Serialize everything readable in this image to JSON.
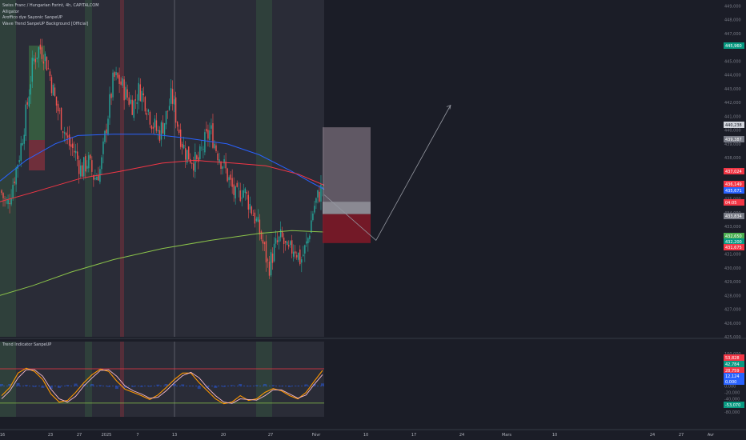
{
  "legend": {
    "line1": "Swiss Franc / Hungarian Forint, 4h, CAPITALCOM",
    "line2": "Alligator",
    "line3": "Aroffico dye Sayonic SanpeUP",
    "line4": "Wave Trend SanpeUP Background [Official]"
  },
  "oscillator_label": "Trend Indicator SanpeUP",
  "colors": {
    "background": "#1b1d27",
    "history_shade": "#2a2c37",
    "up_candle": "#26a69a",
    "down_candle": "#ef5350",
    "blue_line": "#2962ff",
    "red_line": "#f23645",
    "green_line": "#8bc34a",
    "orange_wave": "#ff9800",
    "pink_wave": "#f8bbd0"
  },
  "chart_data": [
    {
      "type": "candlestick",
      "title": "Swiss Franc / Hungarian Forint, 4h, CAPITALCOM",
      "x_ticks": [
        "16",
        "23",
        "27",
        "2025",
        "7",
        "13",
        "20",
        "27",
        "Févr",
        "10",
        "17",
        "24",
        "Mars",
        "10",
        "24",
        "27",
        "Avr"
      ],
      "y_ticks": [
        449.0,
        448.0,
        447.0,
        446.0,
        445.0,
        444.0,
        443.0,
        442.0,
        441.0,
        440.0,
        439.0,
        438.0,
        437.0,
        436.0,
        435.0,
        434.0,
        433.0,
        432.0,
        431.0,
        430.0,
        429.0,
        428.0,
        427.0,
        426.0,
        425.0
      ],
      "ylim": [
        425.0,
        449.2
      ],
      "grid": false,
      "close_path": [
        {
          "t": 0,
          "v": 435.6
        },
        {
          "t": 0.02,
          "v": 434.4
        },
        {
          "t": 0.04,
          "v": 436.4
        },
        {
          "t": 0.06,
          "v": 438.5
        },
        {
          "t": 0.08,
          "v": 441.5
        },
        {
          "t": 0.1,
          "v": 445.0
        },
        {
          "t": 0.12,
          "v": 446.0
        },
        {
          "t": 0.135,
          "v": 445.5
        },
        {
          "t": 0.15,
          "v": 444.2
        },
        {
          "t": 0.17,
          "v": 442.0
        },
        {
          "t": 0.19,
          "v": 440.5
        },
        {
          "t": 0.21,
          "v": 439.0
        },
        {
          "t": 0.23,
          "v": 438.4
        },
        {
          "t": 0.25,
          "v": 437.0
        },
        {
          "t": 0.27,
          "v": 437.8
        },
        {
          "t": 0.29,
          "v": 436.5
        },
        {
          "t": 0.31,
          "v": 437.2
        },
        {
          "t": 0.33,
          "v": 440.8
        },
        {
          "t": 0.35,
          "v": 443.8
        },
        {
          "t": 0.37,
          "v": 443.5
        },
        {
          "t": 0.39,
          "v": 442.5
        },
        {
          "t": 0.41,
          "v": 441.8
        },
        {
          "t": 0.43,
          "v": 443.0
        },
        {
          "t": 0.45,
          "v": 442.0
        },
        {
          "t": 0.47,
          "v": 440.5
        },
        {
          "t": 0.49,
          "v": 439.7
        },
        {
          "t": 0.51,
          "v": 440.8
        },
        {
          "t": 0.53,
          "v": 442.5
        },
        {
          "t": 0.55,
          "v": 440.2
        },
        {
          "t": 0.57,
          "v": 438.5
        },
        {
          "t": 0.59,
          "v": 438.0
        },
        {
          "t": 0.61,
          "v": 437.5
        },
        {
          "t": 0.63,
          "v": 439.0
        },
        {
          "t": 0.65,
          "v": 440.0
        },
        {
          "t": 0.67,
          "v": 438.5
        },
        {
          "t": 0.69,
          "v": 437.5
        },
        {
          "t": 0.71,
          "v": 436.2
        },
        {
          "t": 0.73,
          "v": 435.0
        },
        {
          "t": 0.75,
          "v": 435.8
        },
        {
          "t": 0.77,
          "v": 434.7
        },
        {
          "t": 0.79,
          "v": 433.5
        },
        {
          "t": 0.81,
          "v": 432.0
        },
        {
          "t": 0.83,
          "v": 430.0
        },
        {
          "t": 0.85,
          "v": 431.5
        },
        {
          "t": 0.87,
          "v": 432.2
        },
        {
          "t": 0.89,
          "v": 431.0
        },
        {
          "t": 0.91,
          "v": 431.6
        },
        {
          "t": 0.93,
          "v": 430.5
        },
        {
          "t": 0.95,
          "v": 431.8
        },
        {
          "t": 0.97,
          "v": 434.4
        },
        {
          "t": 1,
          "v": 436.1
        }
      ],
      "lines": [
        {
          "color": "#2962ff",
          "points": [
            {
              "t": 0,
              "v": 436.3
            },
            {
              "t": 0.08,
              "v": 437.8
            },
            {
              "t": 0.17,
              "v": 439.0
            },
            {
              "t": 0.24,
              "v": 439.6
            },
            {
              "t": 0.35,
              "v": 439.7
            },
            {
              "t": 0.47,
              "v": 439.7
            },
            {
              "t": 0.58,
              "v": 439.4
            },
            {
              "t": 0.7,
              "v": 439.0
            },
            {
              "t": 0.8,
              "v": 438.2
            },
            {
              "t": 0.9,
              "v": 437.0
            },
            {
              "t": 0.96,
              "v": 436.2
            },
            {
              "t": 1,
              "v": 435.7
            }
          ]
        },
        {
          "color": "#f23645",
          "points": [
            {
              "t": 0,
              "v": 434.8
            },
            {
              "t": 0.12,
              "v": 435.6
            },
            {
              "t": 0.25,
              "v": 436.5
            },
            {
              "t": 0.37,
              "v": 437.0
            },
            {
              "t": 0.5,
              "v": 437.6
            },
            {
              "t": 0.6,
              "v": 437.8
            },
            {
              "t": 0.72,
              "v": 437.6
            },
            {
              "t": 0.82,
              "v": 437.4
            },
            {
              "t": 0.92,
              "v": 436.8
            },
            {
              "t": 1,
              "v": 436.0
            }
          ]
        },
        {
          "color": "#8bc34a",
          "points": [
            {
              "t": 0,
              "v": 428.0
            },
            {
              "t": 0.1,
              "v": 428.7
            },
            {
              "t": 0.22,
              "v": 429.7
            },
            {
              "t": 0.35,
              "v": 430.6
            },
            {
              "t": 0.5,
              "v": 431.4
            },
            {
              "t": 0.65,
              "v": 432.0
            },
            {
              "t": 0.8,
              "v": 432.5
            },
            {
              "t": 0.9,
              "v": 432.7
            },
            {
              "t": 1,
              "v": 432.6
            }
          ]
        }
      ],
      "price_labels": [
        {
          "value": "448,000",
          "kind": "axis"
        },
        {
          "value": "445,960",
          "color": "#089981"
        },
        {
          "value": "440,238",
          "color": "#d1d4dc"
        },
        {
          "value": "439,387",
          "color": "#787b86"
        },
        {
          "value": "437,024",
          "color": "#f23645"
        },
        {
          "value": "436,149",
          "color": "#f23645"
        },
        {
          "value": "435,671",
          "color": "#2962ff"
        },
        {
          "value": "04:05",
          "color": "#f23645"
        },
        {
          "value": "433,834",
          "color": "#787b86"
        },
        {
          "value": "432,650",
          "color": "#4caf50"
        },
        {
          "value": "432,200",
          "color": "#089981"
        },
        {
          "value": "431,675",
          "color": "#f23645"
        }
      ],
      "trade_box": {
        "entry": 433.9,
        "target": 440.2,
        "stop": 431.8,
        "entry_zone_top": 434.8
      },
      "projection": [
        {
          "t": 1.0,
          "v": 435.3
        },
        {
          "t": 1.16,
          "v": 432.0
        },
        {
          "t": 1.39,
          "v": 441.8
        }
      ]
    },
    {
      "type": "line",
      "title": "Trend Indicator SanpeUP",
      "y_ticks": [
        100,
        80,
        60,
        40,
        20,
        0,
        -20,
        -40,
        -60,
        -80
      ],
      "ylim": [
        -88,
        100
      ],
      "levels": [
        53,
        -53
      ],
      "series": [
        {
          "name": "",
          "color": "#ff9800",
          "values": [
            -30,
            -5,
            40,
            55,
            45,
            20,
            -25,
            -50,
            -45,
            -20,
            10,
            35,
            52,
            45,
            15,
            -10,
            -20,
            -30,
            -42,
            -28,
            -5,
            20,
            40,
            40,
            10,
            -15,
            -40,
            -55,
            -50,
            -30,
            -45,
            -40,
            -20,
            -8,
            -15,
            -30,
            -40,
            -20,
            15,
            48
          ]
        },
        {
          "name": "",
          "color": "#f8bbd0",
          "values": [
            -40,
            -15,
            25,
            50,
            50,
            30,
            -10,
            -40,
            -50,
            -32,
            0,
            25,
            48,
            50,
            30,
            0,
            -15,
            -25,
            -38,
            -35,
            -15,
            10,
            32,
            42,
            25,
            -5,
            -30,
            -50,
            -54,
            -40,
            -42,
            -44,
            -30,
            -12,
            -12,
            -25,
            -38,
            -28,
            5,
            35
          ]
        }
      ],
      "price_labels": [
        {
          "value": "53,828",
          "color": "#f23645"
        },
        {
          "value": "42,784",
          "color": "#089981"
        },
        {
          "value": "28,759",
          "color": "#f23645"
        },
        {
          "value": "12,124",
          "color": "#2962ff"
        },
        {
          "value": "0,000",
          "color": "#2962ff"
        },
        {
          "value": "-53,070",
          "color": "#089981"
        }
      ]
    }
  ]
}
